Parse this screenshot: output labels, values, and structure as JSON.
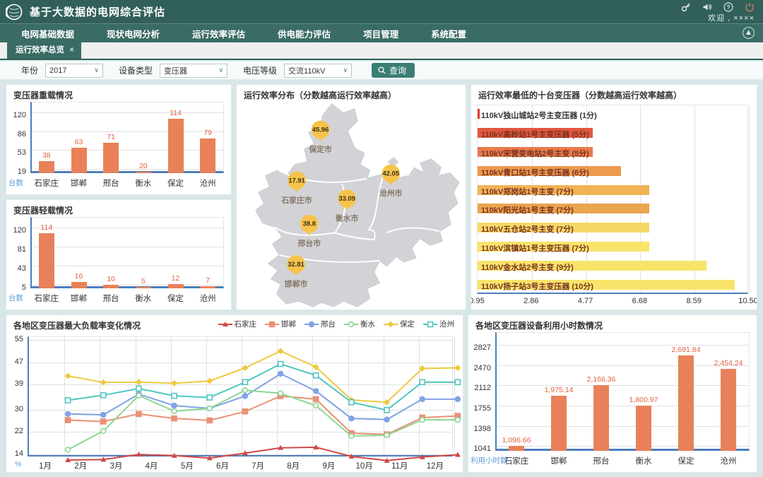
{
  "app": {
    "title": "基于大数据的电网综合评估",
    "welcome": "欢迎 , ××××",
    "topbar_icons": [
      "key-icon",
      "sound-icon",
      "help-icon",
      "power-icon"
    ],
    "colors": {
      "topbar": "#31605b",
      "navbar": "#3a6b65",
      "accent": "#3a7e74",
      "axis_blue": "#4d7ebc",
      "bar_orange": "#e8815a",
      "value_orange": "#e26240",
      "pin_yellow": "#f6c44a",
      "map_grey": "#d3d3d7"
    }
  },
  "nav": {
    "items": [
      "电网基础数据",
      "现状电网分析",
      "运行效率评估",
      "供电能力评估",
      "项目管理",
      "系统配置"
    ]
  },
  "tabs": {
    "active": "运行效率总览",
    "close": "×"
  },
  "filters": {
    "year": {
      "label": "年份",
      "value": "2017"
    },
    "device": {
      "label": "设备类型",
      "value": "变压器"
    },
    "voltage": {
      "label": "电压等级",
      "value": "交流110kV"
    },
    "search": {
      "label": "查询"
    }
  },
  "chart_data": [
    {
      "id": "overload",
      "type": "bar",
      "title": "变压器重载情况",
      "categories": [
        "石家庄",
        "邯郸",
        "邢台",
        "衡水",
        "保定",
        "沧州"
      ],
      "values": [
        38,
        63,
        71,
        20,
        114,
        79
      ],
      "yticks": [
        19,
        53,
        86,
        120
      ],
      "axis_min": 17,
      "axis_max": 124,
      "ylabel": "台数",
      "bar_color": "#e8815a",
      "grid": true,
      "legend_position": "none"
    },
    {
      "id": "lightload",
      "type": "bar",
      "title": "变压器轻载情况",
      "categories": [
        "石家庄",
        "邯郸",
        "邢台",
        "衡水",
        "保定",
        "沧州"
      ],
      "values": [
        114,
        16,
        10,
        5,
        12,
        7
      ],
      "yticks": [
        5,
        43,
        81,
        120
      ],
      "axis_min": 3,
      "axis_max": 124,
      "ylabel": "台数",
      "bar_color": "#e8815a",
      "grid": true,
      "legend_position": "none"
    },
    {
      "id": "efficiency-map",
      "type": "map",
      "title": "运行效率分布（分数越高运行效率越高）",
      "points": [
        {
          "city": "保定市",
          "value": 45.96,
          "x": 119,
          "y": 42
        },
        {
          "city": "石家庄市",
          "value": 17.91,
          "x": 85,
          "y": 115
        },
        {
          "city": "沧州市",
          "value": 42.05,
          "x": 220,
          "y": 105
        },
        {
          "city": "衡水市",
          "value": 33.09,
          "x": 157,
          "y": 141
        },
        {
          "city": "邢台市",
          "value": 38.8,
          "x": 103,
          "y": 177
        },
        {
          "city": "邯郸市",
          "value": 32.81,
          "x": 84,
          "y": 235
        }
      ],
      "pin_color": "#f6c44a",
      "land_color": "#d3d3d7"
    },
    {
      "id": "worst-transformers",
      "type": "hbar",
      "title": "运行效率最低的十台变压器（分数越高运行效率越高）",
      "items": [
        {
          "label": "110kV独山城站2号主变压器 (1分)",
          "value": 1,
          "color": "#e03a2a"
        },
        {
          "label": "110kV高岭站1号主变压器 (5分)",
          "value": 5,
          "color": "#e25740"
        },
        {
          "label": "110kV宋营变电站2号主变 (5分)",
          "value": 5,
          "color": "#e87a4c"
        },
        {
          "label": "110kV青口站1号主变压器 (6分)",
          "value": 6,
          "color": "#ec9a4e"
        },
        {
          "label": "110kV郑岗站1号主变 (7分)",
          "value": 7,
          "color": "#f0b457"
        },
        {
          "label": "110kV阳光站1号主变 (7分)",
          "value": 7,
          "color": "#eca44f"
        },
        {
          "label": "110kV五仓站2号主变 (7分)",
          "value": 7,
          "color": "#f5d966"
        },
        {
          "label": "110kV滨镇站1号主变压器 (7分)",
          "value": 7,
          "color": "#f8e46a"
        },
        {
          "label": "110kV金水站2号主变 (9分)",
          "value": 9,
          "color": "#f8e46a"
        },
        {
          "label": "110kV扬子站3号主变压器 (10分)",
          "value": 10,
          "color": "#f8e46a"
        }
      ],
      "xticks": [
        0.95,
        2.86,
        4.77,
        6.68,
        8.59,
        10.5
      ],
      "xtick_labels": [
        "0.95",
        "2.86",
        "4.77",
        "6.68",
        "8.59",
        "10.50"
      ],
      "axis_min": 0.95,
      "axis_max": 10.5,
      "grid": true
    },
    {
      "id": "max-load-rate",
      "type": "line",
      "title": "各地区变压器最大负载率变化情况",
      "x": [
        "1月",
        "2月",
        "3月",
        "4月",
        "5月",
        "6月",
        "7月",
        "8月",
        "9月",
        "10月",
        "11月",
        "12月"
      ],
      "yticks": [
        14,
        22,
        30,
        39,
        47,
        55
      ],
      "axis_min": 13,
      "axis_max": 56,
      "ylabel": "%",
      "legend_position": "top-right",
      "grid": true,
      "series": [
        {
          "name": "石家庄",
          "color": "#cf4848",
          "marker": "triangle",
          "values": [
            14.0,
            14.2,
            16.0,
            15.6,
            14.7,
            16.5,
            18.4,
            18.6,
            15.3,
            13.8,
            15.1,
            15.9
          ]
        },
        {
          "name": "邯郸",
          "color": "#e99175",
          "marker": "square",
          "values": [
            28.3,
            27.8,
            30.5,
            28.9,
            28.2,
            31.4,
            36.9,
            35.8,
            23.6,
            23.2,
            29.2,
            29.8
          ]
        },
        {
          "name": "邢台",
          "color": "#7fa3e6",
          "marker": "circle",
          "values": [
            30.5,
            30.2,
            37.6,
            33.5,
            32.5,
            36.9,
            44.9,
            38.7,
            28.9,
            28.5,
            35.8,
            35.8
          ]
        },
        {
          "name": "衡水",
          "color": "#8fd694",
          "marker": "circle-open",
          "values": [
            17.7,
            24.4,
            37.1,
            31.5,
            32.5,
            39.0,
            37.9,
            33.5,
            22.6,
            22.9,
            28.4,
            28.4
          ]
        },
        {
          "name": "保定",
          "color": "#eec93f",
          "marker": "diamond",
          "values": [
            44.1,
            41.8,
            41.9,
            41.5,
            42.3,
            47.0,
            53.0,
            47.3,
            35.5,
            34.7,
            46.8,
            47.0
          ]
        },
        {
          "name": "沧州",
          "color": "#4fc6c0",
          "marker": "square-open",
          "values": [
            35.4,
            37.2,
            39.6,
            37.0,
            36.4,
            41.9,
            48.4,
            44.3,
            34.7,
            31.9,
            41.9,
            41.9
          ]
        }
      ]
    },
    {
      "id": "utilization-hours",
      "type": "bar",
      "title": "各地区变压器设备利用小时数情况",
      "categories": [
        "石家庄",
        "邯郸",
        "邢台",
        "衡水",
        "保定",
        "沧州"
      ],
      "values": [
        1096.66,
        1975.14,
        2166.36,
        1800.97,
        2691.84,
        2454.24
      ],
      "value_labels": [
        "1,096.66",
        "1,975.14",
        "2,166.36",
        "1,800.97",
        "2,691.84",
        "2,454.24"
      ],
      "yticks": [
        1041,
        1398,
        1755,
        2112,
        2470,
        2827
      ],
      "axis_min": 1005,
      "axis_max": 2900,
      "ylabel": "利用小时数",
      "bar_color": "#e8815a",
      "grid": true,
      "legend_position": "none"
    }
  ]
}
